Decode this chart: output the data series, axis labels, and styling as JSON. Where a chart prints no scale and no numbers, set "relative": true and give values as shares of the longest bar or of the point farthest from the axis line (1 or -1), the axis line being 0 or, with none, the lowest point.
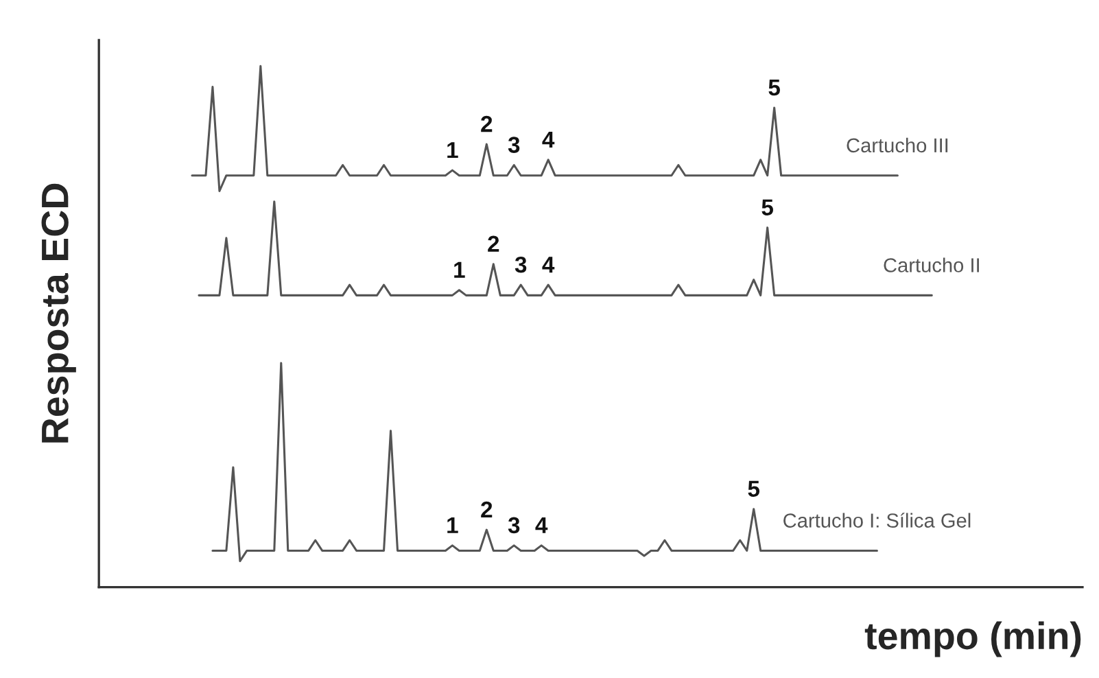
{
  "chart_data": {
    "type": "line",
    "relative": true,
    "tick_labels": false,
    "xlabel": "tempo (min)",
    "ylabel": "Resposta ECD",
    "categories": [
      null,
      null,
      null,
      null,
      null,
      null,
      null,
      null,
      null,
      null,
      null,
      null,
      null,
      null,
      null,
      null,
      null,
      null,
      null,
      null,
      null,
      null,
      null,
      null,
      null,
      null,
      null,
      null,
      null,
      null,
      null,
      null,
      null,
      null,
      null,
      null,
      null,
      null,
      null,
      null,
      null,
      null,
      null,
      null,
      null,
      null,
      null,
      null,
      null,
      null,
      null,
      null,
      null,
      null,
      null,
      null,
      null,
      null,
      null,
      null,
      null,
      null,
      null,
      null,
      null,
      null,
      null,
      null,
      null,
      null,
      null,
      null,
      null,
      null,
      null,
      null,
      null,
      null,
      null,
      null,
      null,
      null,
      null,
      null,
      null,
      null,
      null,
      null,
      null,
      null,
      null,
      null,
      null,
      null,
      null,
      null,
      null,
      null,
      null,
      null,
      null,
      null,
      null,
      null,
      null,
      null,
      null,
      null,
      null
    ],
    "annotations": [
      {
        "text": "1",
        "y": 0.8
      },
      {
        "text": "2",
        "y": 0.85
      },
      {
        "text": "3",
        "y": 0.81
      },
      {
        "text": "4",
        "y": 0.82
      },
      {
        "text": "5",
        "y": 0.92
      },
      {
        "text": "1",
        "y": 0.57
      },
      {
        "text": "2",
        "y": 0.62
      },
      {
        "text": "3",
        "y": 0.58
      },
      {
        "text": "4",
        "y": 0.58
      },
      {
        "text": "5",
        "y": 0.69
      },
      {
        "text": "1",
        "y": 0.08
      },
      {
        "text": "2",
        "y": 0.11
      },
      {
        "text": "3",
        "y": 0.08
      },
      {
        "text": "4",
        "y": 0.08
      },
      {
        "text": "5",
        "y": 0.15
      }
    ],
    "series": [
      {
        "name": "Cartucho III",
        "color": "#555555",
        "values": [
          0.79,
          0.79,
          0.79,
          0.96,
          0.76,
          0.79,
          0.79,
          0.79,
          0.79,
          0.79,
          1.0,
          0.79,
          0.79,
          0.79,
          0.79,
          0.79,
          0.79,
          0.79,
          0.79,
          0.79,
          0.79,
          0.79,
          0.81,
          0.79,
          0.79,
          0.79,
          0.79,
          0.79,
          0.81,
          0.79,
          0.79,
          0.79,
          0.79,
          0.79,
          0.79,
          0.79,
          0.79,
          0.79,
          0.8,
          0.79,
          0.79,
          0.79,
          0.79,
          0.85,
          0.79,
          0.79,
          0.79,
          0.81,
          0.79,
          0.79,
          0.79,
          0.79,
          0.82,
          0.79,
          0.79,
          0.79,
          0.79,
          0.79,
          0.79,
          0.79,
          0.79,
          0.79,
          0.79,
          0.79,
          0.79,
          0.79,
          0.79,
          0.79,
          0.79,
          0.79,
          0.79,
          0.81,
          0.79,
          0.79,
          0.79,
          0.79,
          0.79,
          0.79,
          0.79,
          0.79,
          0.79,
          0.79,
          0.79,
          0.82,
          0.79,
          0.92,
          0.79,
          0.79,
          0.79,
          0.79,
          0.79,
          0.79,
          0.79,
          0.79,
          0.79,
          0.79,
          0.79,
          0.79,
          0.79,
          0.79,
          0.79,
          0.79,
          0.79,
          0.79,
          null,
          null,
          null,
          null,
          null
        ]
      },
      {
        "name": "Cartucho II",
        "color": "#555555",
        "values": [
          null,
          0.56,
          0.56,
          0.56,
          0.56,
          0.67,
          0.56,
          0.56,
          0.56,
          0.56,
          0.56,
          0.56,
          0.74,
          0.56,
          0.56,
          0.56,
          0.56,
          0.56,
          0.56,
          0.56,
          0.56,
          0.56,
          0.56,
          0.58,
          0.56,
          0.56,
          0.56,
          0.56,
          0.58,
          0.56,
          0.56,
          0.56,
          0.56,
          0.56,
          0.56,
          0.56,
          0.56,
          0.56,
          0.56,
          0.57,
          0.56,
          0.56,
          0.56,
          0.56,
          0.62,
          0.56,
          0.56,
          0.56,
          0.58,
          0.56,
          0.56,
          0.56,
          0.58,
          0.56,
          0.56,
          0.56,
          0.56,
          0.56,
          0.56,
          0.56,
          0.56,
          0.56,
          0.56,
          0.56,
          0.56,
          0.56,
          0.56,
          0.56,
          0.56,
          0.56,
          0.56,
          0.58,
          0.56,
          0.56,
          0.56,
          0.56,
          0.56,
          0.56,
          0.56,
          0.56,
          0.56,
          0.56,
          0.59,
          0.56,
          0.69,
          0.56,
          0.56,
          0.56,
          0.56,
          0.56,
          0.56,
          0.56,
          0.56,
          0.56,
          0.56,
          0.56,
          0.56,
          0.56,
          0.56,
          0.56,
          0.56,
          0.56,
          0.56,
          0.56,
          0.56,
          0.56,
          0.56,
          0.56,
          0.56
        ]
      },
      {
        "name": "Cartucho I: Sílica Gel",
        "color": "#555555",
        "values": [
          null,
          null,
          null,
          0.07,
          0.07,
          0.07,
          0.23,
          0.05,
          0.07,
          0.07,
          0.07,
          0.07,
          0.07,
          0.43,
          0.07,
          0.07,
          0.07,
          0.07,
          0.09,
          0.07,
          0.07,
          0.07,
          0.07,
          0.09,
          0.07,
          0.07,
          0.07,
          0.07,
          0.07,
          0.3,
          0.07,
          0.07,
          0.07,
          0.07,
          0.07,
          0.07,
          0.07,
          0.07,
          0.08,
          0.07,
          0.07,
          0.07,
          0.07,
          0.11,
          0.07,
          0.07,
          0.07,
          0.08,
          0.07,
          0.07,
          0.07,
          0.08,
          0.07,
          0.07,
          0.07,
          0.07,
          0.07,
          0.07,
          0.07,
          0.07,
          0.07,
          0.07,
          0.07,
          0.07,
          0.07,
          0.07,
          0.06,
          0.07,
          0.07,
          0.09,
          0.07,
          0.07,
          0.07,
          0.07,
          0.07,
          0.07,
          0.07,
          0.07,
          0.07,
          0.07,
          0.09,
          0.07,
          0.15,
          0.07,
          0.07,
          0.07,
          0.07,
          0.07,
          0.07,
          0.07,
          0.07,
          0.07,
          0.07,
          0.07,
          0.07,
          0.07,
          0.07,
          0.07,
          0.07,
          0.07,
          0.07,
          null,
          null,
          null,
          null,
          null,
          null,
          null,
          null
        ]
      }
    ]
  }
}
